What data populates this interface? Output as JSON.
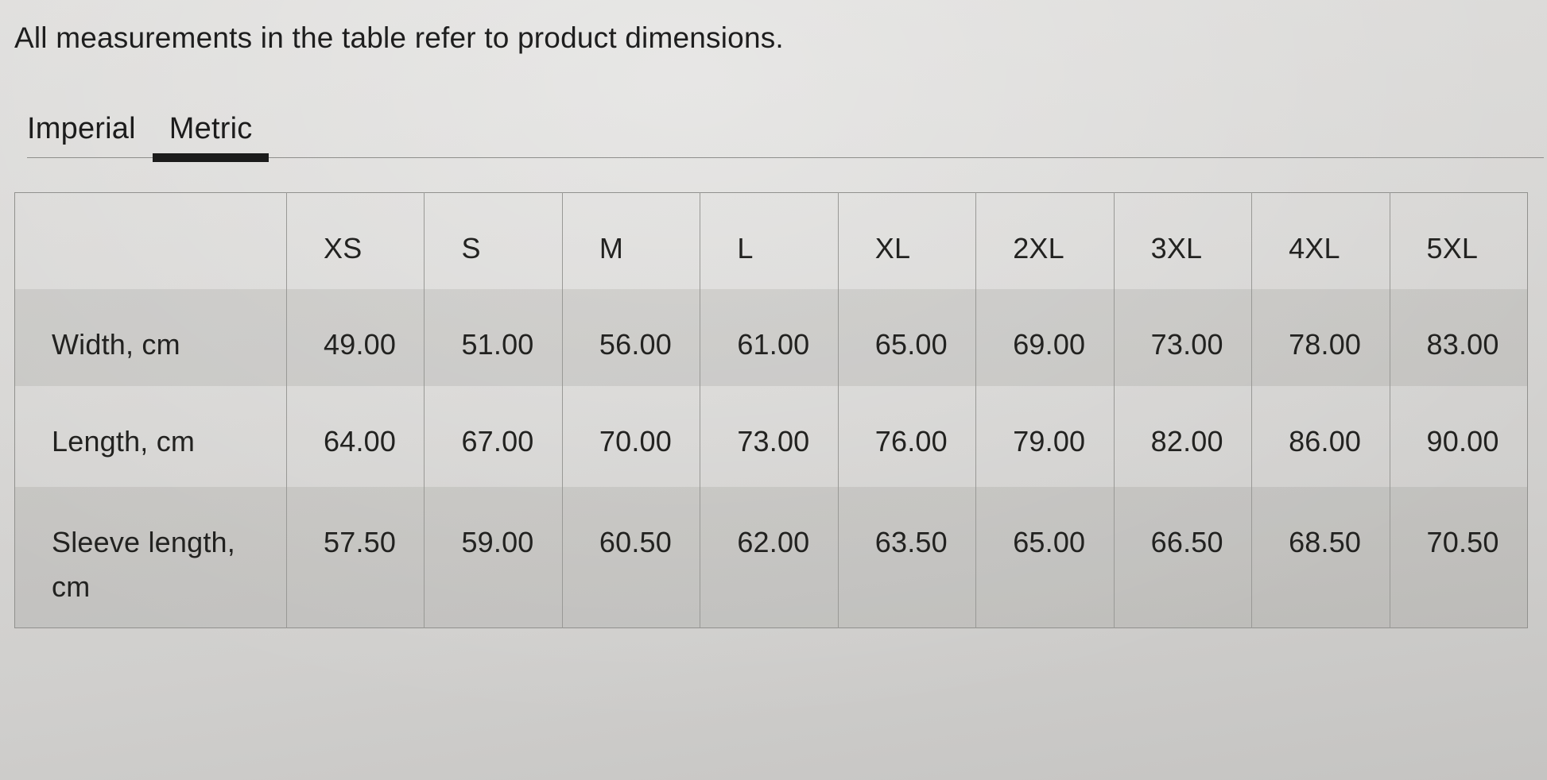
{
  "note": "All measurements in the table refer to product dimensions.",
  "tabs": [
    {
      "label": "Imperial",
      "active": false
    },
    {
      "label": "Metric",
      "active": true
    }
  ],
  "table": {
    "sizes": [
      "XS",
      "S",
      "M",
      "L",
      "XL",
      "2XL",
      "3XL",
      "4XL",
      "5XL"
    ],
    "rows": [
      {
        "label": "Width, cm",
        "values": [
          "49.00",
          "51.00",
          "56.00",
          "61.00",
          "65.00",
          "69.00",
          "73.00",
          "78.00",
          "83.00"
        ]
      },
      {
        "label": "Length, cm",
        "values": [
          "64.00",
          "67.00",
          "70.00",
          "73.00",
          "76.00",
          "79.00",
          "82.00",
          "86.00",
          "90.00"
        ]
      },
      {
        "label": "Sleeve length, cm",
        "values": [
          "57.50",
          "59.00",
          "60.50",
          "62.00",
          "63.50",
          "65.00",
          "66.50",
          "68.50",
          "70.50"
        ]
      }
    ]
  },
  "colors": {
    "text": "#212121",
    "active_tab_underline": "#1b1b1b",
    "divider_line": "#8f8f8c",
    "table_border": "#91918e",
    "row_stripe": "rgba(72,72,68,0.105)",
    "page_background": "#d5d4d2"
  }
}
